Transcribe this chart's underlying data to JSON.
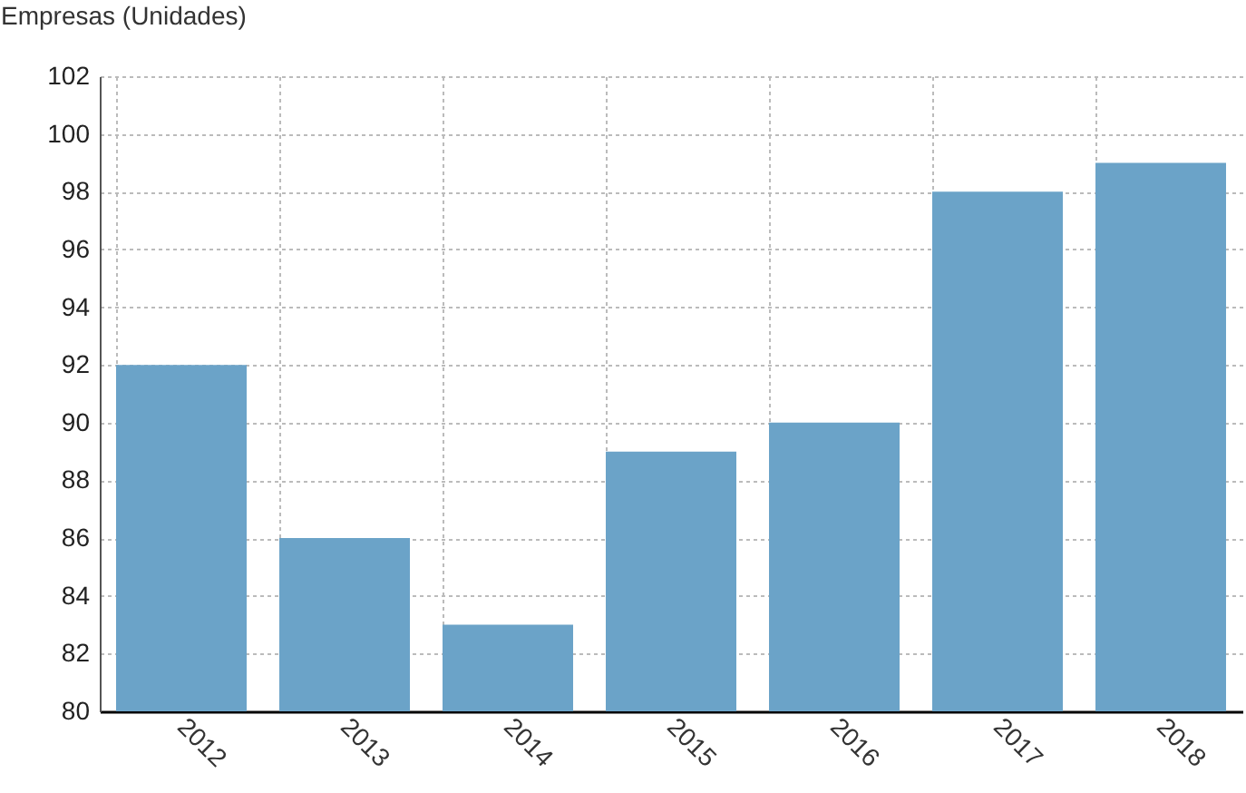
{
  "chart_data": {
    "type": "bar",
    "ylabel": "Empresas (Unidades)",
    "categories": [
      "2012",
      "2013",
      "2014",
      "2015",
      "2016",
      "2017",
      "2018"
    ],
    "values": [
      92,
      86,
      83,
      89,
      90,
      98,
      99
    ],
    "color": "#6ba3c8",
    "ylim": [
      80,
      102
    ],
    "yticks": [
      80,
      82,
      84,
      86,
      88,
      90,
      92,
      94,
      96,
      98,
      100,
      102
    ],
    "grid": true
  }
}
